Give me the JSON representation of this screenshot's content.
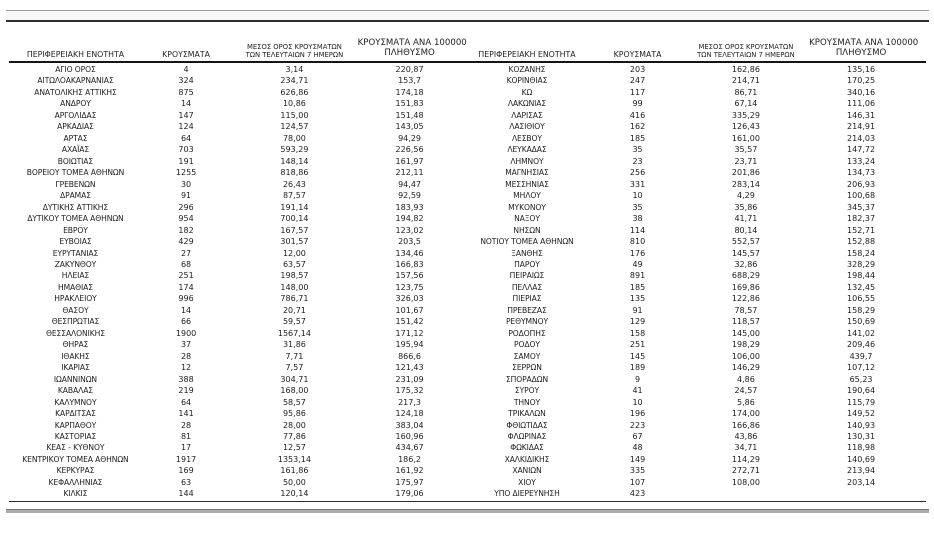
{
  "columns": {
    "region": "ΠΕΡΙΦΕΡΕΙΑΚΗ ΕΝΟΤΗΤΑ",
    "cases": "ΚΡΟΥΣΜΑΤΑ",
    "avg7_line1": "ΜΕΣΟΣ ΟΡΟΣ ΚΡΟΥΣΜΑΤΩΝ",
    "avg7_line2": "ΤΩΝ ΤΕΛΕΥΤΑΙΩΝ 7 ΗΜΕΡΩΝ",
    "per100k_line1": "ΚΡΟΥΣΜΑΤΑ ΑΝΑ 100000",
    "per100k_line2": "ΠΛΗΘΥΣΜΟ"
  },
  "tables": [
    {
      "rows": [
        [
          "ΑΓΙΟ ΟΡΟΣ",
          "4",
          "3,14",
          "220,87"
        ],
        [
          "ΑΙΤΩΛΟΑΚΑΡΝΑΝΙΑΣ",
          "324",
          "234,71",
          "153,7"
        ],
        [
          "ΑΝΑΤΟΛΙΚΗΣ ΑΤΤΙΚΗΣ",
          "875",
          "626,86",
          "174,18"
        ],
        [
          "ΑΝΔΡΟΥ",
          "14",
          "10,86",
          "151,83"
        ],
        [
          "ΑΡΓΟΛΙΔΑΣ",
          "147",
          "115,00",
          "151,48"
        ],
        [
          "ΑΡΚΑΔΙΑΣ",
          "124",
          "124,57",
          "143,05"
        ],
        [
          "ΑΡΤΑΣ",
          "64",
          "78,00",
          "94,29"
        ],
        [
          "ΑΧΑΪΑΣ",
          "703",
          "593,29",
          "226,56"
        ],
        [
          "ΒΟΙΩΤΙΑΣ",
          "191",
          "148,14",
          "161,97"
        ],
        [
          "ΒΟΡΕΙΟΥ ΤΟΜΕΑ ΑΘΗΝΩΝ",
          "1255",
          "818,86",
          "212,11"
        ],
        [
          "ΓΡΕΒΕΝΩΝ",
          "30",
          "26,43",
          "94,47"
        ],
        [
          "ΔΡΑΜΑΣ",
          "91",
          "87,57",
          "92,59"
        ],
        [
          "ΔΥΤΙΚΗΣ ΑΤΤΙΚΗΣ",
          "296",
          "191,14",
          "183,93"
        ],
        [
          "ΔΥΤΙΚΟΥ ΤΟΜΕΑ ΑΘΗΝΩΝ",
          "954",
          "700,14",
          "194,82"
        ],
        [
          "ΕΒΡΟΥ",
          "182",
          "167,57",
          "123,02"
        ],
        [
          "ΕΥΒΟΙΑΣ",
          "429",
          "301,57",
          "203,5"
        ],
        [
          "ΕΥΡΥΤΑΝΙΑΣ",
          "27",
          "12,00",
          "134,46"
        ],
        [
          "ΖΑΚΥΝΘΟΥ",
          "68",
          "63,57",
          "166,83"
        ],
        [
          "ΗΛΕΙΑΣ",
          "251",
          "198,57",
          "157,56"
        ],
        [
          "ΗΜΑΘΙΑΣ",
          "174",
          "148,00",
          "123,75"
        ],
        [
          "ΗΡΑΚΛΕΙΟΥ",
          "996",
          "786,71",
          "326,03"
        ],
        [
          "ΘΑΣΟΥ",
          "14",
          "20,71",
          "101,67"
        ],
        [
          "ΘΕΣΠΡΩΤΙΑΣ",
          "66",
          "59,57",
          "151,42"
        ],
        [
          "ΘΕΣΣΑΛΟΝΙΚΗΣ",
          "1900",
          "1567,14",
          "171,12"
        ],
        [
          "ΘΗΡΑΣ",
          "37",
          "31,86",
          "195,94"
        ],
        [
          "ΙΘΑΚΗΣ",
          "28",
          "7,71",
          "866,6"
        ],
        [
          "ΙΚΑΡΙΑΣ",
          "12",
          "7,57",
          "121,43"
        ],
        [
          "ΙΩΑΝΝΙΝΩΝ",
          "388",
          "304,71",
          "231,09"
        ],
        [
          "ΚΑΒΑΛΑΣ",
          "219",
          "168,00",
          "175,32"
        ],
        [
          "ΚΑΛΥΜΝΟΥ",
          "64",
          "58,57",
          "217,3"
        ],
        [
          "ΚΑΡΔΙΤΣΑΣ",
          "141",
          "95,86",
          "124,18"
        ],
        [
          "ΚΑΡΠΑΘΟΥ",
          "28",
          "28,00",
          "383,04"
        ],
        [
          "ΚΑΣΤΟΡΙΑΣ",
          "81",
          "77,86",
          "160,96"
        ],
        [
          "ΚΕΑΣ - ΚΥΘΝΟΥ",
          "17",
          "12,57",
          "434,67"
        ],
        [
          "ΚΕΝΤΡΙΚΟΥ ΤΟΜΕΑ ΑΘΗΝΩΝ",
          "1917",
          "1353,14",
          "186,2"
        ],
        [
          "ΚΕΡΚΥΡΑΣ",
          "169",
          "161,86",
          "161,92"
        ],
        [
          "ΚΕΦΑΛΛΗΝΙΑΣ",
          "63",
          "50,00",
          "175,97"
        ],
        [
          "ΚΙΛΚΙΣ",
          "144",
          "120,14",
          "179,06"
        ]
      ]
    },
    {
      "rows": [
        [
          "ΚΟΖΑΝΗΣ",
          "203",
          "162,86",
          "135,16"
        ],
        [
          "ΚΟΡΙΝΘΙΑΣ",
          "247",
          "214,71",
          "170,25"
        ],
        [
          "ΚΩ",
          "117",
          "86,71",
          "340,16"
        ],
        [
          "ΛΑΚΩΝΙΑΣ",
          "99",
          "67,14",
          "111,06"
        ],
        [
          "ΛΑΡΙΣΑΣ",
          "416",
          "335,29",
          "146,31"
        ],
        [
          "ΛΑΣΙΘΙΟΥ",
          "162",
          "126,43",
          "214,91"
        ],
        [
          "ΛΕΣΒΟΥ",
          "185",
          "161,00",
          "214,03"
        ],
        [
          "ΛΕΥΚΑΔΑΣ",
          "35",
          "35,57",
          "147,72"
        ],
        [
          "ΛΗΜΝΟΥ",
          "23",
          "23,71",
          "133,24"
        ],
        [
          "ΜΑΓΝΗΣΙΑΣ",
          "256",
          "201,86",
          "134,73"
        ],
        [
          "ΜΕΣΣΗΝΙΑΣ",
          "331",
          "283,14",
          "206,93"
        ],
        [
          "ΜΗΛΟΥ",
          "10",
          "4,29",
          "100,68"
        ],
        [
          "ΜΥΚΟΝΟΥ",
          "35",
          "35,86",
          "345,37"
        ],
        [
          "ΝΑΞΟΥ",
          "38",
          "41,71",
          "182,37"
        ],
        [
          "ΝΗΣΩΝ",
          "114",
          "80,14",
          "152,71"
        ],
        [
          "ΝΟΤΙΟΥ ΤΟΜΕΑ ΑΘΗΝΩΝ",
          "810",
          "552,57",
          "152,88"
        ],
        [
          "ΞΑΝΘΗΣ",
          "176",
          "145,57",
          "158,24"
        ],
        [
          "ΠΑΡΟΥ",
          "49",
          "32,86",
          "328,29"
        ],
        [
          "ΠΕΙΡΑΙΩΣ",
          "891",
          "688,29",
          "198,44"
        ],
        [
          "ΠΕΛΛΑΣ",
          "185",
          "169,86",
          "132,45"
        ],
        [
          "ΠΙΕΡΙΑΣ",
          "135",
          "122,86",
          "106,55"
        ],
        [
          "ΠΡΕΒΕΖΑΣ",
          "91",
          "78,57",
          "158,29"
        ],
        [
          "ΡΕΘΥΜΝΟΥ",
          "129",
          "118,57",
          "150,69"
        ],
        [
          "ΡΟΔΟΠΗΣ",
          "158",
          "145,00",
          "141,02"
        ],
        [
          "ΡΟΔΟΥ",
          "251",
          "198,29",
          "209,46"
        ],
        [
          "ΣΑΜΟΥ",
          "145",
          "106,00",
          "439,7"
        ],
        [
          "ΣΕΡΡΩΝ",
          "189",
          "146,29",
          "107,12"
        ],
        [
          "ΣΠΟΡΑΔΩΝ",
          "9",
          "4,86",
          "65,23"
        ],
        [
          "ΣΥΡΟΥ",
          "41",
          "24,57",
          "190,64"
        ],
        [
          "ΤΗΝΟΥ",
          "10",
          "5,86",
          "115,79"
        ],
        [
          "ΤΡΙΚΑΛΩΝ",
          "196",
          "174,00",
          "149,52"
        ],
        [
          "ΦΘΙΩΤΙΔΑΣ",
          "223",
          "166,86",
          "140,93"
        ],
        [
          "ΦΛΩΡΙΝΑΣ",
          "67",
          "43,86",
          "130,31"
        ],
        [
          "ΦΩΚΙΔΑΣ",
          "48",
          "34,71",
          "118,98"
        ],
        [
          "ΧΑΛΚΙΔΙΚΗΣ",
          "149",
          "114,29",
          "140,69"
        ],
        [
          "ΧΑΝΙΩΝ",
          "335",
          "272,71",
          "213,94"
        ],
        [
          "ΧΙΟΥ",
          "107",
          "108,00",
          "203,14"
        ],
        [
          "ΥΠΟ ΔΙΕΡΕΥΝΗΣΗ",
          "423",
          "",
          ""
        ]
      ]
    }
  ]
}
